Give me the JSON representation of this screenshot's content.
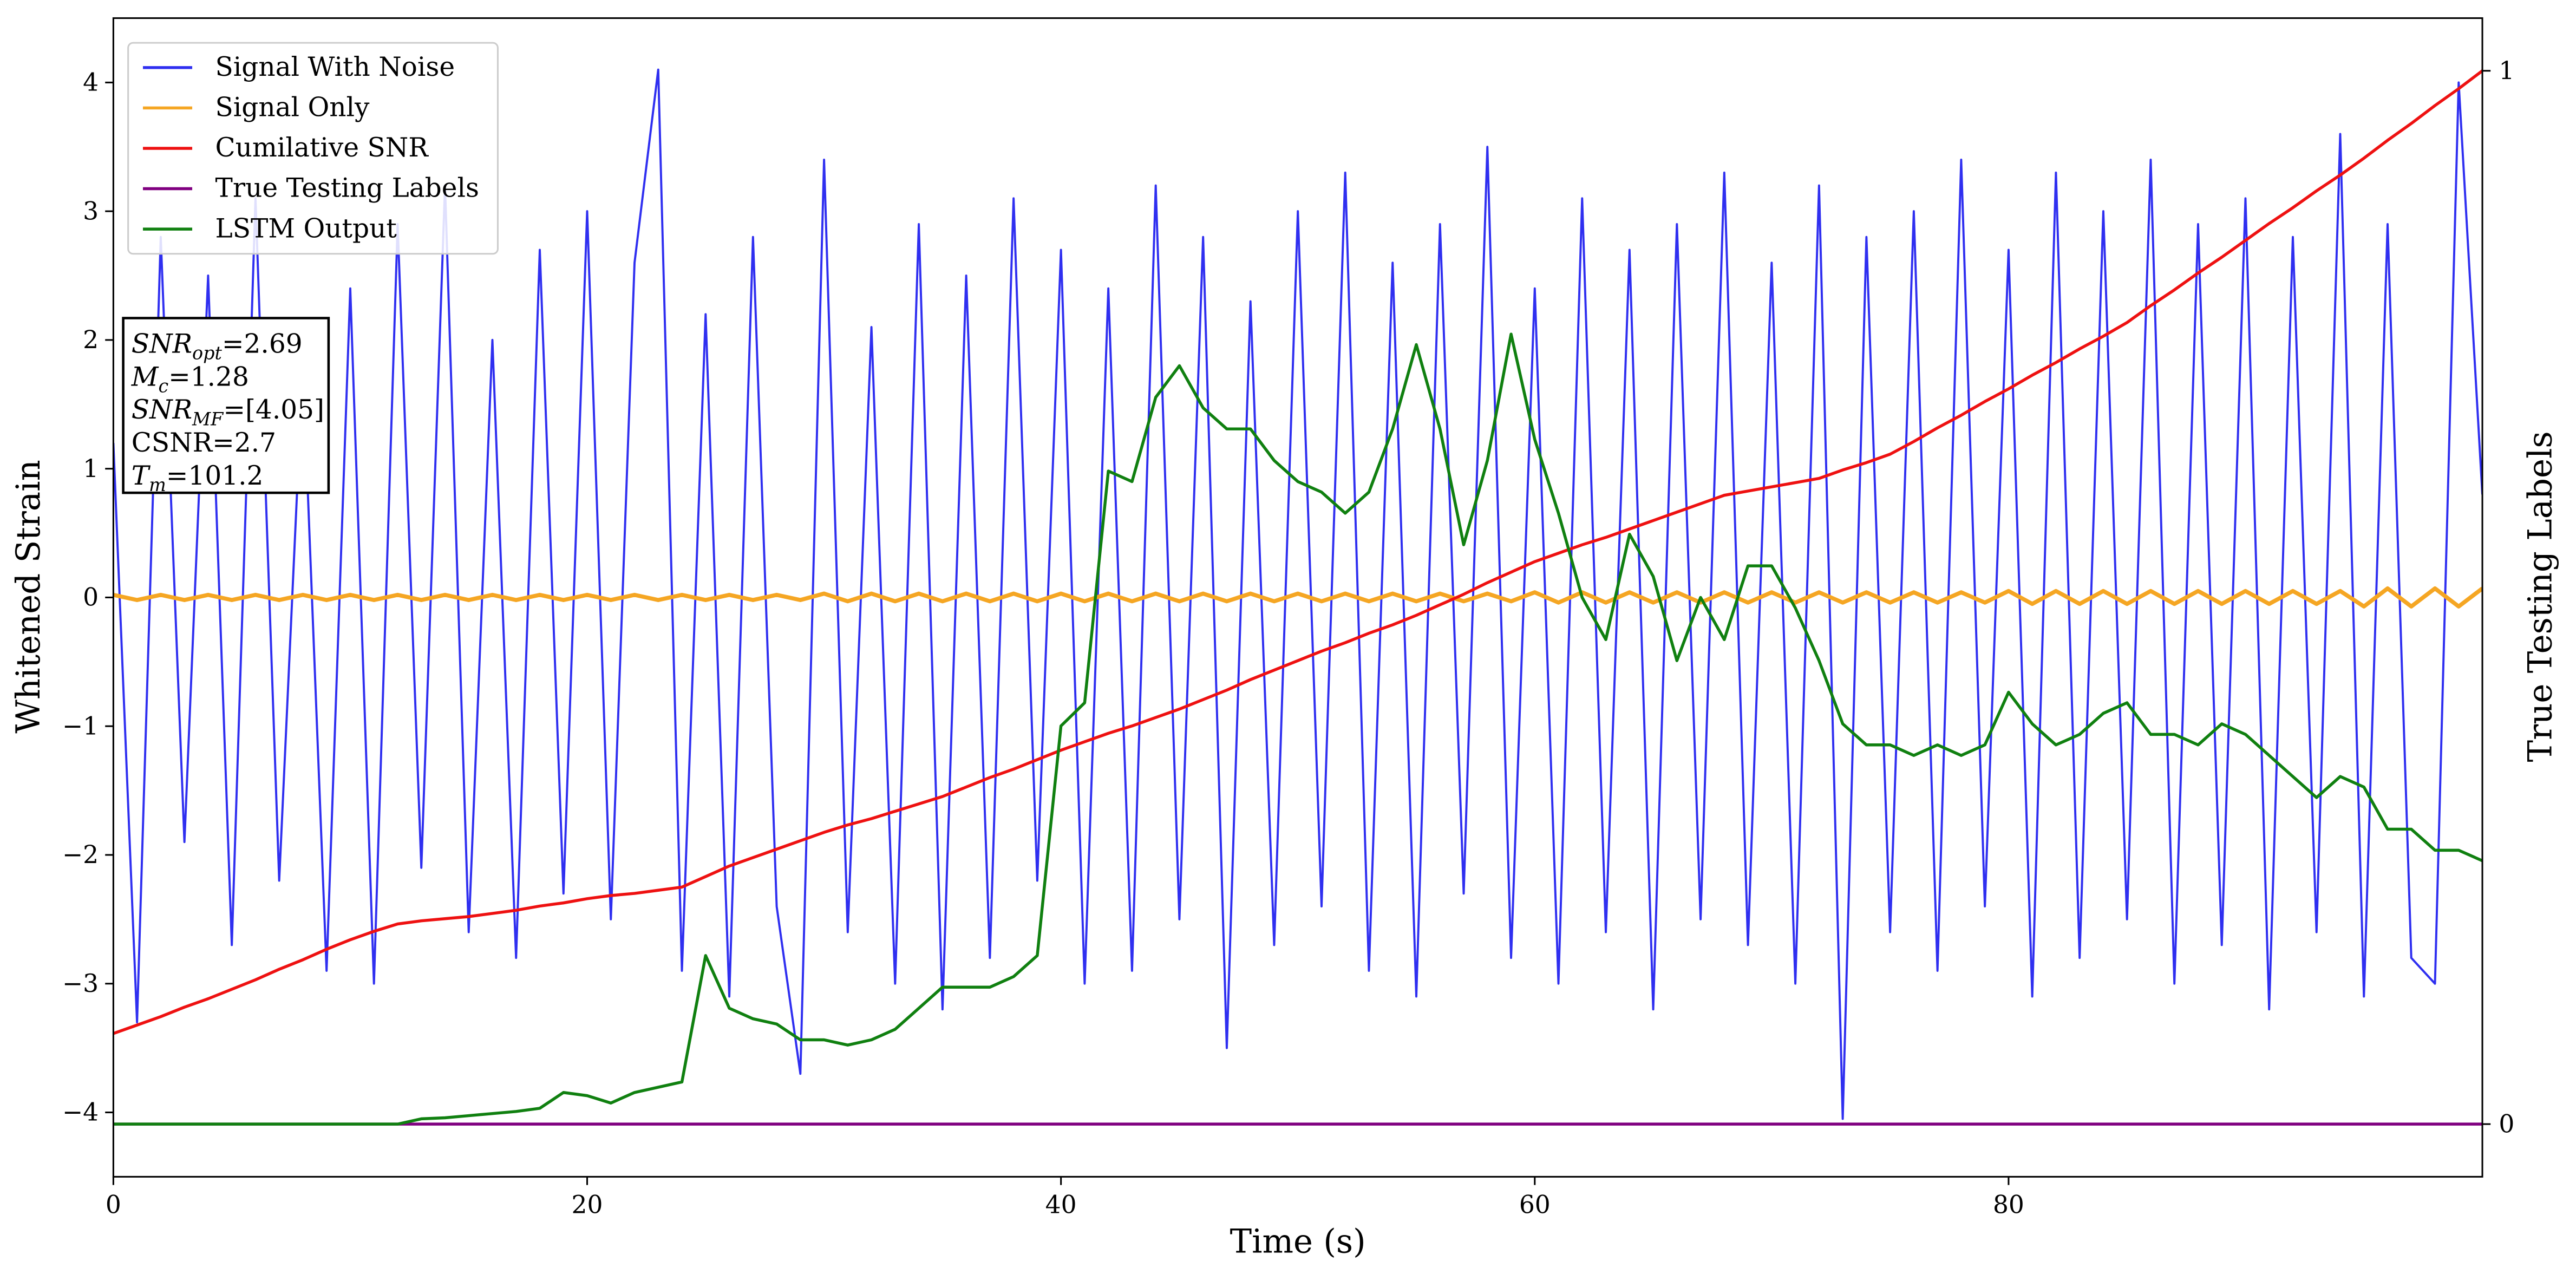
{
  "chart_data": {
    "type": "line",
    "xlabel": "Time (s)",
    "ylabel": "Whitened Strain",
    "y2label": "True Testing Labels",
    "xlim": [
      0,
      100
    ],
    "xticks": [
      0,
      20,
      40,
      60,
      80
    ],
    "ylim": [
      -4.5,
      4.5
    ],
    "yticks": [
      {
        "value": -4,
        "label": "−4"
      },
      {
        "value": -3,
        "label": "−3"
      },
      {
        "value": -2,
        "label": "−2"
      },
      {
        "value": -1,
        "label": "−1"
      },
      0,
      1,
      2,
      3,
      4
    ],
    "y2lim": [
      -0.05,
      1.05
    ],
    "y2ticks": [
      0,
      1
    ],
    "legend": "upper left",
    "grid": false,
    "annotation": [
      [
        "SNR",
        "opt",
        "=2.69"
      ],
      [
        "M",
        "c",
        "=1.28"
      ],
      [
        "SNR",
        "MF",
        "=[4.05]"
      ],
      [
        "CSNR=2.7"
      ],
      [
        "T",
        "m",
        "=101.2"
      ]
    ],
    "x": [
      0,
      1,
      2,
      3,
      4,
      5,
      6,
      7,
      8,
      9,
      10,
      11,
      12,
      13,
      14,
      15,
      16,
      17,
      18,
      19,
      20,
      21,
      22,
      23,
      24,
      25,
      26,
      27,
      28,
      29,
      30,
      31,
      32,
      33,
      34,
      35,
      36,
      37,
      38,
      39,
      40,
      41,
      42,
      43,
      44,
      45,
      46,
      47,
      48,
      49,
      50,
      51,
      52,
      53,
      54,
      55,
      56,
      57,
      58,
      59,
      60,
      61,
      62,
      63,
      64,
      65,
      66,
      67,
      68,
      69,
      70,
      71,
      72,
      73,
      74,
      75,
      76,
      77,
      78,
      79,
      80,
      81,
      82,
      83,
      84,
      85,
      86,
      87,
      88,
      89,
      90,
      91,
      92,
      93,
      94,
      95,
      96,
      97,
      98,
      99,
      100
    ],
    "series": [
      {
        "name": "Signal With Noise",
        "color": "#2f2ff0",
        "axis": "y",
        "values": [
          1.2,
          -3.3,
          2.8,
          -1.9,
          2.5,
          -2.7,
          3.1,
          -2.2,
          1.8,
          -2.9,
          2.4,
          -3.0,
          2.9,
          -2.1,
          3.2,
          -2.6,
          2.0,
          -2.8,
          2.7,
          -2.3,
          3.0,
          -2.5,
          2.6,
          4.1,
          -2.9,
          2.2,
          -3.1,
          2.8,
          -2.4,
          -3.7,
          3.4,
          -2.6,
          2.1,
          -3.0,
          2.9,
          -3.2,
          2.5,
          -2.8,
          3.1,
          -2.2,
          2.7,
          -3.0,
          2.4,
          -2.9,
          3.2,
          -2.5,
          2.8,
          -3.5,
          2.3,
          -2.7,
          3.0,
          -2.4,
          3.3,
          -2.9,
          2.6,
          -3.1,
          2.9,
          -2.3,
          3.5,
          -2.8,
          2.4,
          -3.0,
          3.1,
          -2.6,
          2.7,
          -3.2,
          2.9,
          -2.5,
          3.3,
          -2.7,
          2.6,
          -3.0,
          3.2,
          -4.05,
          2.8,
          -2.6,
          3.0,
          -2.9,
          3.4,
          -2.4,
          2.7,
          -3.1,
          3.3,
          -2.8,
          3.0,
          -2.5,
          3.4,
          -3.0,
          2.9,
          -2.7,
          3.1,
          -3.2,
          2.8,
          -2.6,
          3.6,
          -3.1,
          2.9,
          -2.8,
          -3.0,
          4.0,
          0.8
        ]
      },
      {
        "name": "Signal Only",
        "color": "#f5a623",
        "axis": "y",
        "values": [
          0.02,
          -0.02,
          0.02,
          -0.02,
          0.02,
          -0.02,
          0.02,
          -0.02,
          0.02,
          -0.02,
          0.02,
          -0.02,
          0.02,
          -0.02,
          0.02,
          -0.02,
          0.02,
          -0.02,
          0.02,
          -0.02,
          0.02,
          -0.02,
          0.02,
          -0.02,
          0.02,
          -0.02,
          0.02,
          -0.02,
          0.02,
          -0.02,
          0.03,
          -0.03,
          0.03,
          -0.03,
          0.03,
          -0.03,
          0.03,
          -0.03,
          0.03,
          -0.03,
          0.03,
          -0.03,
          0.03,
          -0.03,
          0.03,
          -0.03,
          0.03,
          -0.03,
          0.03,
          -0.03,
          0.03,
          -0.03,
          0.03,
          -0.03,
          0.03,
          -0.03,
          0.03,
          -0.03,
          0.03,
          -0.03,
          0.04,
          -0.04,
          0.04,
          -0.04,
          0.04,
          -0.04,
          0.04,
          -0.04,
          0.04,
          -0.04,
          0.04,
          -0.04,
          0.04,
          -0.04,
          0.04,
          -0.04,
          0.04,
          -0.04,
          0.04,
          -0.04,
          0.05,
          -0.05,
          0.05,
          -0.05,
          0.05,
          -0.05,
          0.05,
          -0.05,
          0.05,
          -0.05,
          0.05,
          -0.05,
          0.05,
          -0.05,
          0.05,
          -0.07,
          0.07,
          -0.07,
          0.07,
          -0.07,
          0.07
        ]
      },
      {
        "name": "Cumilative SNR",
        "color": "#ee1111",
        "axis": "y2",
        "values": [
          0.086,
          0.094,
          0.102,
          0.111,
          0.119,
          0.128,
          0.137,
          0.147,
          0.156,
          0.166,
          0.175,
          0.183,
          0.19,
          0.193,
          0.195,
          0.197,
          0.2,
          0.203,
          0.207,
          0.21,
          0.214,
          0.217,
          0.219,
          0.222,
          0.225,
          0.235,
          0.245,
          0.253,
          0.261,
          0.269,
          0.277,
          0.284,
          0.29,
          0.297,
          0.304,
          0.311,
          0.32,
          0.329,
          0.337,
          0.346,
          0.355,
          0.363,
          0.371,
          0.378,
          0.386,
          0.394,
          0.403,
          0.412,
          0.422,
          0.431,
          0.44,
          0.449,
          0.457,
          0.466,
          0.474,
          0.483,
          0.493,
          0.503,
          0.514,
          0.524,
          0.534,
          0.542,
          0.55,
          0.557,
          0.565,
          0.573,
          0.581,
          0.589,
          0.597,
          0.601,
          0.605,
          0.609,
          0.613,
          0.621,
          0.628,
          0.636,
          0.648,
          0.661,
          0.673,
          0.686,
          0.698,
          0.711,
          0.723,
          0.736,
          0.748,
          0.761,
          0.777,
          0.792,
          0.808,
          0.823,
          0.839,
          0.855,
          0.87,
          0.886,
          0.901,
          0.917,
          0.934,
          0.95,
          0.967,
          0.983,
          1.0
        ]
      },
      {
        "name": "True Testing Labels",
        "color": "#800080",
        "axis": "y2",
        "values": [
          0,
          0,
          0,
          0,
          0,
          0,
          0,
          0,
          0,
          0,
          0,
          0,
          0,
          0,
          0,
          0,
          0,
          0,
          0,
          0,
          0,
          0,
          0,
          0,
          0,
          0,
          0,
          0,
          0,
          0,
          0,
          0,
          0,
          0,
          0,
          0,
          0,
          0,
          0,
          0,
          0,
          0,
          0,
          0,
          0,
          0,
          0,
          0,
          0,
          0,
          0,
          0,
          0,
          0,
          0,
          0,
          0,
          0,
          0,
          0,
          0,
          0,
          0,
          0,
          0,
          0,
          0,
          0,
          0,
          0,
          0,
          0,
          0,
          0,
          0,
          0,
          0,
          0,
          0,
          0,
          0,
          0,
          0,
          0,
          0,
          0,
          0,
          0,
          0,
          0,
          0,
          0,
          0,
          0,
          0,
          0,
          0,
          0,
          0,
          0,
          0
        ]
      },
      {
        "name": "LSTM Output",
        "color": "#108010",
        "axis": "y2",
        "values": [
          0,
          0,
          0,
          0,
          0,
          0,
          0,
          0,
          0,
          0,
          0,
          0,
          0,
          0.005,
          0.006,
          0.008,
          0.01,
          0.012,
          0.015,
          0.03,
          0.027,
          0.02,
          0.03,
          0.035,
          0.04,
          0.16,
          0.11,
          0.1,
          0.095,
          0.08,
          0.08,
          0.075,
          0.08,
          0.09,
          0.11,
          0.13,
          0.13,
          0.13,
          0.14,
          0.16,
          0.378,
          0.4,
          0.62,
          0.61,
          0.69,
          0.72,
          0.68,
          0.66,
          0.66,
          0.63,
          0.61,
          0.6,
          0.58,
          0.6,
          0.66,
          0.74,
          0.66,
          0.55,
          0.63,
          0.75,
          0.65,
          0.58,
          0.5,
          0.46,
          0.56,
          0.52,
          0.44,
          0.5,
          0.46,
          0.53,
          0.53,
          0.49,
          0.44,
          0.38,
          0.36,
          0.36,
          0.35,
          0.36,
          0.35,
          0.36,
          0.41,
          0.38,
          0.36,
          0.37,
          0.39,
          0.4,
          0.37,
          0.37,
          0.36,
          0.38,
          0.37,
          0.35,
          0.33,
          0.31,
          0.33,
          0.32,
          0.28,
          0.28,
          0.26,
          0.26,
          0.25
        ]
      }
    ]
  }
}
